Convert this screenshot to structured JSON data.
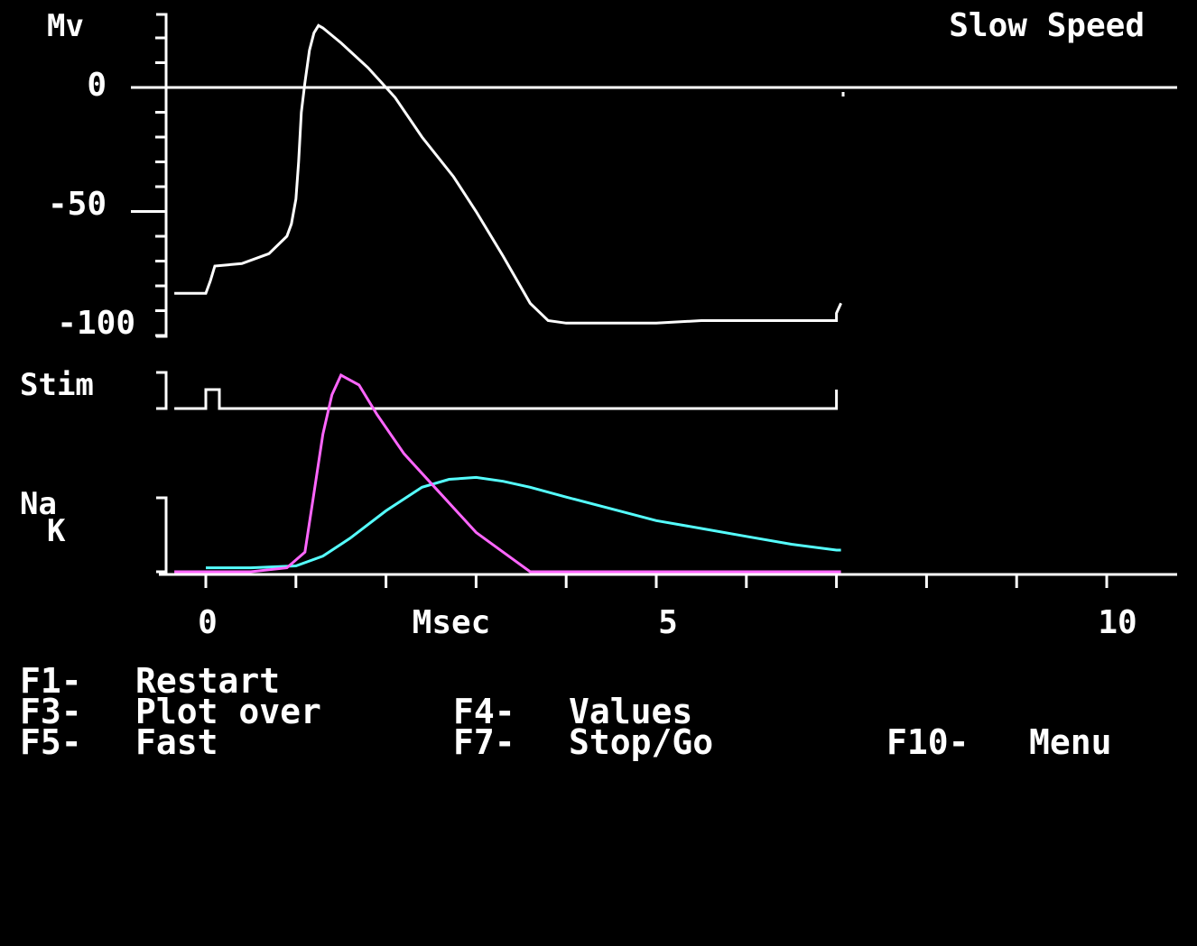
{
  "screen": {
    "speed_label": "Slow Speed",
    "background": "#000000",
    "foreground": "#ffffff"
  },
  "voltage_panel": {
    "unit_label": "Mv",
    "tick_labels": [
      "0",
      "-50",
      "-100"
    ]
  },
  "stim_panel": {
    "label": "Stim"
  },
  "conductance_panel": {
    "na_label": "Na",
    "k_label": "K",
    "na_color": "#ff66ff",
    "k_color": "#55ffff"
  },
  "time_axis": {
    "label": "Msec",
    "tick_labels": [
      "0",
      "5",
      "10"
    ]
  },
  "function_keys": [
    {
      "key": "F1-",
      "label": "Restart"
    },
    {
      "key": "F3-",
      "label": "Plot over"
    },
    {
      "key": "F4-",
      "label": "Values"
    },
    {
      "key": "F5-",
      "label": "Fast"
    },
    {
      "key": "F7-",
      "label": "Stop/Go"
    },
    {
      "key": "F10-",
      "label": "Menu"
    }
  ],
  "chart_data": [
    {
      "type": "line",
      "title": "",
      "ylabel": "Mv",
      "xlabel": "Msec",
      "xlim": [
        0,
        10
      ],
      "ylim": [
        -100,
        25
      ],
      "series": [
        {
          "x": [
            -0.35,
            0,
            0.05,
            0.1,
            0.4,
            0.7,
            0.9,
            0.95,
            1.0,
            1.03,
            1.06,
            1.1,
            1.15,
            1.2,
            1.25,
            1.3,
            1.5,
            1.8,
            2.1,
            2.4,
            2.75,
            3.0,
            3.3,
            3.6,
            3.8,
            4.0,
            4.5,
            5.0,
            5.5,
            6.0,
            6.5,
            7.0,
            7.0,
            7.05
          ],
          "y": [
            -83,
            -83,
            -78,
            -72,
            -71,
            -67,
            -60,
            -55,
            -45,
            -30,
            -10,
            2,
            15,
            22,
            25,
            24,
            18,
            8,
            -4,
            -20,
            -36,
            -50,
            -68,
            -87,
            -94,
            -95,
            -95,
            -95,
            -94,
            -94,
            -94,
            -94,
            -91,
            -87
          ]
        }
      ]
    },
    {
      "type": "line",
      "title": "",
      "ylabel": "Stim",
      "xlabel": "Msec",
      "xlim": [
        0,
        10
      ],
      "ylim": [
        0,
        1
      ],
      "series": [
        {
          "x": [
            -0.35,
            0,
            0,
            0.15,
            0.15,
            7.0,
            7.0
          ],
          "y": [
            0,
            0,
            1,
            1,
            0,
            0,
            1
          ]
        }
      ]
    },
    {
      "type": "line",
      "title": "",
      "ylabel": "Na K",
      "xlabel": "Msec",
      "xlim": [
        0,
        10
      ],
      "ylim": [
        0,
        1
      ],
      "series": [
        {
          "name": "Na",
          "x": [
            -0.35,
            0,
            0.5,
            0.9,
            1.1,
            1.2,
            1.3,
            1.4,
            1.5,
            1.7,
            1.9,
            2.2,
            2.6,
            3.0,
            3.3,
            3.6,
            7.05
          ],
          "y": [
            0,
            0,
            0,
            0.02,
            0.1,
            0.4,
            0.7,
            0.9,
            1.0,
            0.95,
            0.8,
            0.6,
            0.4,
            0.2,
            0.1,
            0.0,
            0.0
          ]
        },
        {
          "name": "K",
          "x": [
            0,
            0.5,
            1.0,
            1.3,
            1.6,
            2.0,
            2.4,
            2.7,
            3.0,
            3.3,
            3.6,
            4.0,
            4.5,
            5.0,
            5.5,
            6.0,
            6.5,
            7.0,
            7.05
          ],
          "y": [
            0.02,
            0.02,
            0.03,
            0.08,
            0.17,
            0.31,
            0.43,
            0.47,
            0.48,
            0.46,
            0.43,
            0.38,
            0.32,
            0.26,
            0.22,
            0.18,
            0.14,
            0.11,
            0.11
          ]
        }
      ]
    }
  ]
}
